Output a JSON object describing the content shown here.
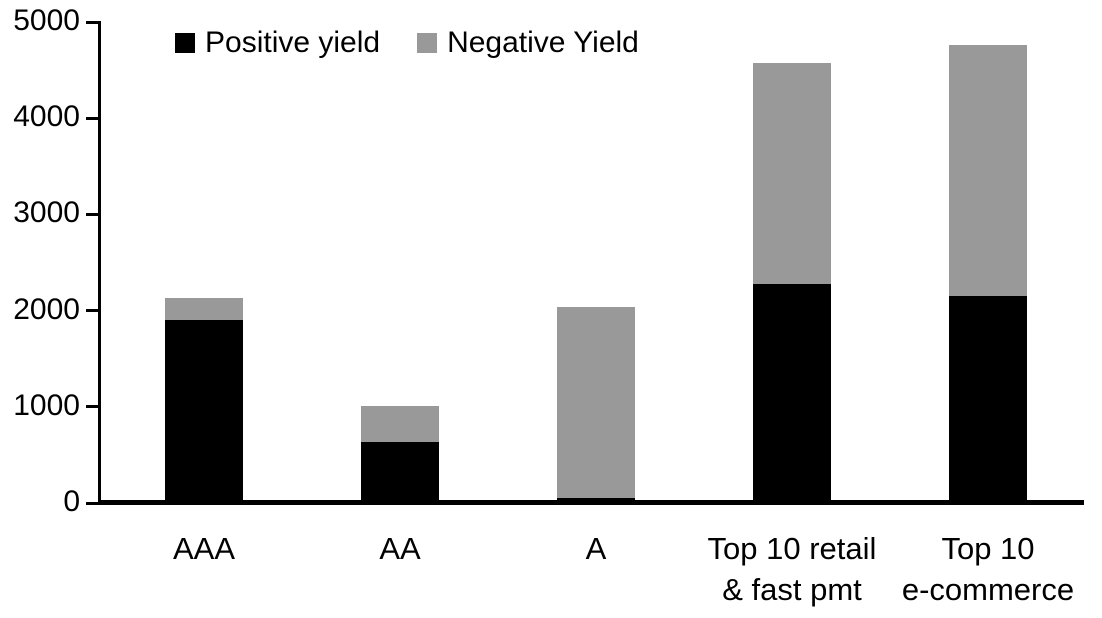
{
  "chart_data": {
    "type": "bar",
    "stacked": true,
    "title": "",
    "xlabel": "",
    "ylabel": "",
    "categories": [
      "AAA",
      "AA",
      "A",
      "Top 10 retail\n& fast pmt",
      "Top 10\ne-commerce"
    ],
    "series": [
      {
        "name": "Positive yield",
        "color": "#000000",
        "values": [
          1900,
          630,
          50,
          2280,
          2150
        ]
      },
      {
        "name": "Negative Yield",
        "color": "#999999",
        "values": [
          230,
          380,
          1985,
          2290,
          2610
        ]
      }
    ],
    "totals": [
      2130,
      1010,
      2035,
      4570,
      4760
    ],
    "ylim": [
      0,
      5000
    ],
    "yticks": [
      0,
      1000,
      2000,
      3000,
      4000,
      5000
    ],
    "grid": false,
    "legend_position": "top-inside",
    "axis_color": "#000000",
    "background_color": "#ffffff"
  }
}
